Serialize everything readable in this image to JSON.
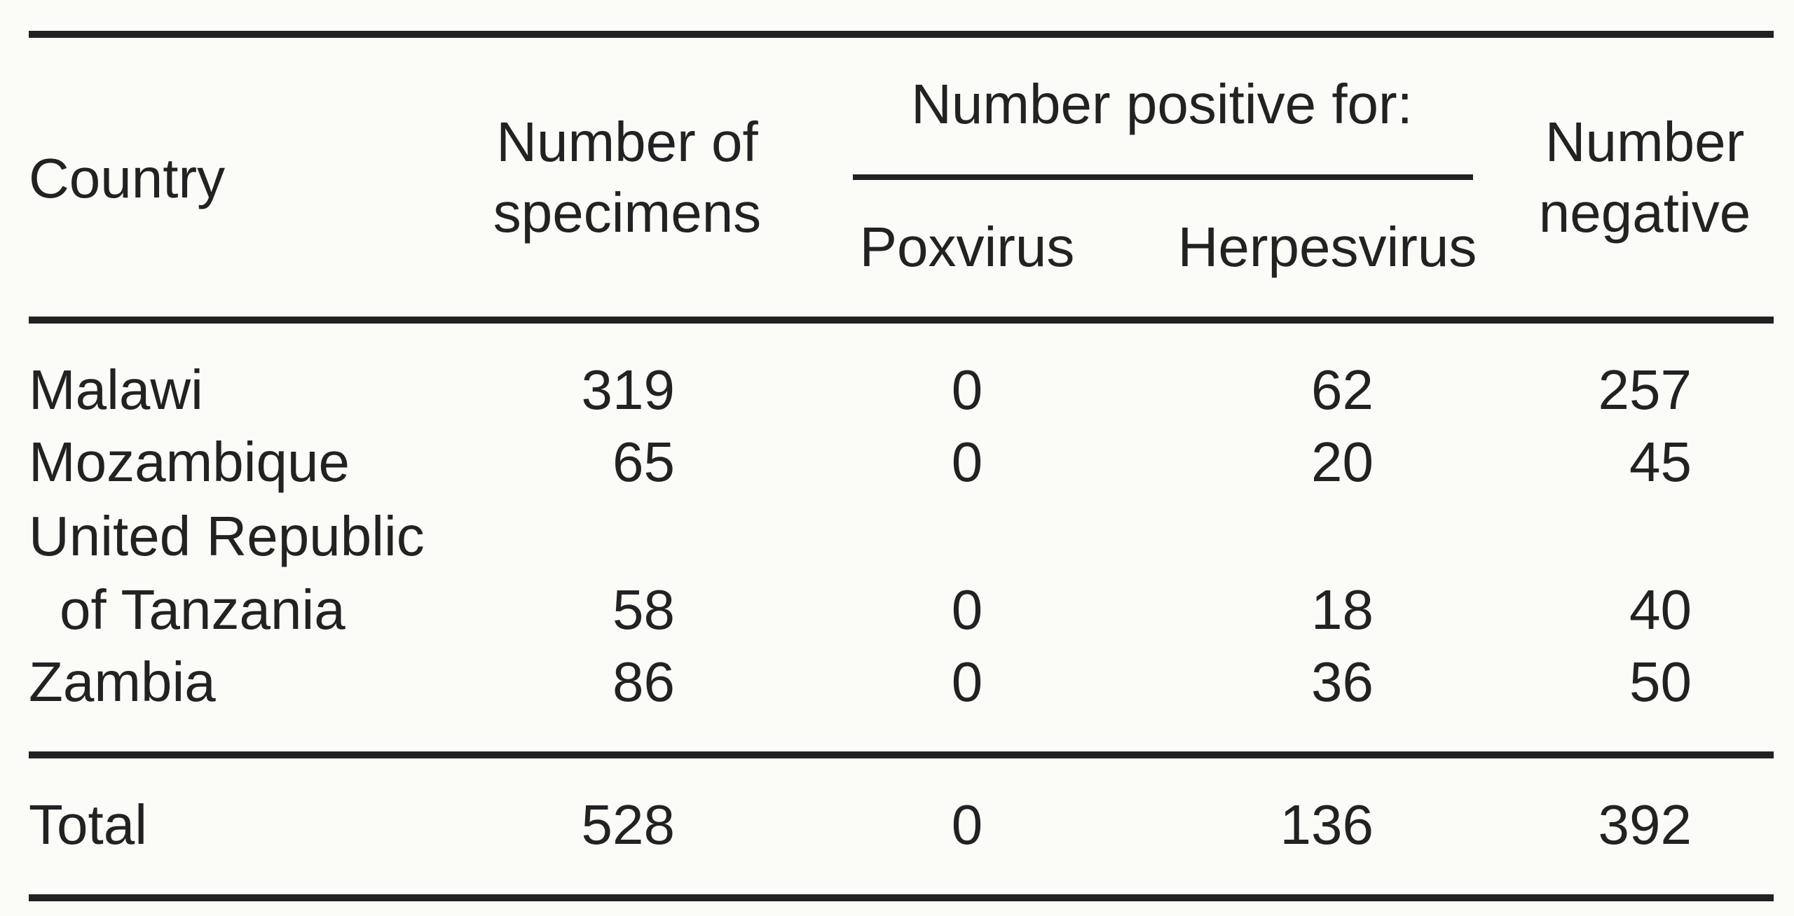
{
  "table": {
    "header": {
      "country": "Country",
      "specimens": [
        "Number of",
        "specimens"
      ],
      "positive_group": "Number positive for:",
      "poxvirus": "Poxvirus",
      "herpesvirus": "Herpesvirus",
      "negative": [
        "Number",
        "negative"
      ]
    },
    "rows": [
      [
        "Malawi",
        319,
        0,
        62,
        257
      ],
      [
        "Mozambique",
        65,
        0,
        20,
        45
      ],
      [
        [
          "United Republic",
          "of Tanzania"
        ],
        58,
        0,
        18,
        40
      ],
      [
        "Zambia",
        86,
        0,
        36,
        50
      ]
    ],
    "total": [
      "Total",
      528,
      0,
      136,
      392
    ]
  }
}
